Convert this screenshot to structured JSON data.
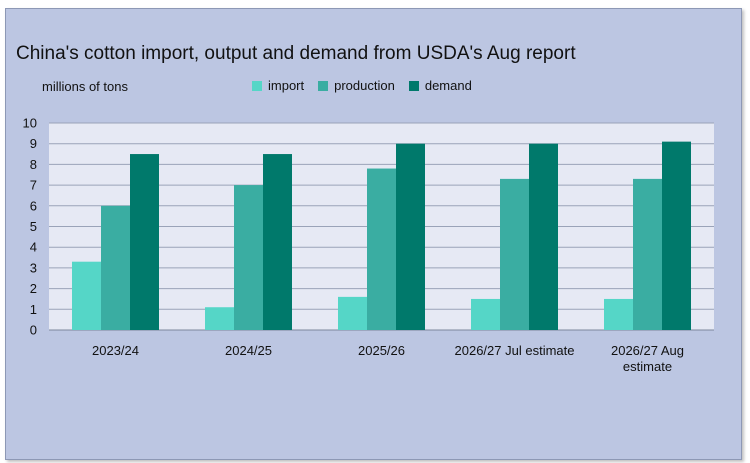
{
  "chart_data": {
    "type": "bar",
    "title": "China's cotton import, output and demand from USDA's Aug report",
    "ylabel": "millions of tons",
    "categories": [
      "2023/24",
      "2024/25",
      "2025/26",
      "2026/27 Jul estimate",
      "2026/27 Aug estimate"
    ],
    "category_lines": [
      [
        "2023/24"
      ],
      [
        "2024/25"
      ],
      [
        "2025/26"
      ],
      [
        "2026/27 Jul estimate"
      ],
      [
        "2026/27 Aug",
        "estimate"
      ]
    ],
    "series": [
      {
        "name": "import",
        "values": [
          3.3,
          1.1,
          1.6,
          1.5,
          1.5
        ],
        "color": "#55d6c7"
      },
      {
        "name": "production",
        "values": [
          6.0,
          7.0,
          7.8,
          7.3,
          7.3
        ],
        "color": "#3aada2"
      },
      {
        "name": "demand",
        "values": [
          8.5,
          8.5,
          9.0,
          9.0,
          9.1
        ],
        "color": "#00796b"
      }
    ],
    "ylim": [
      0,
      10
    ],
    "yticks": [
      0,
      1,
      2,
      3,
      4,
      5,
      6,
      7,
      8,
      9,
      10
    ],
    "grid": true,
    "legend_position": "top-center",
    "colors": {
      "frame_background": "#bcc6e2",
      "plot_background": "#e6e9f4",
      "grid": "#9aa3b8"
    }
  }
}
